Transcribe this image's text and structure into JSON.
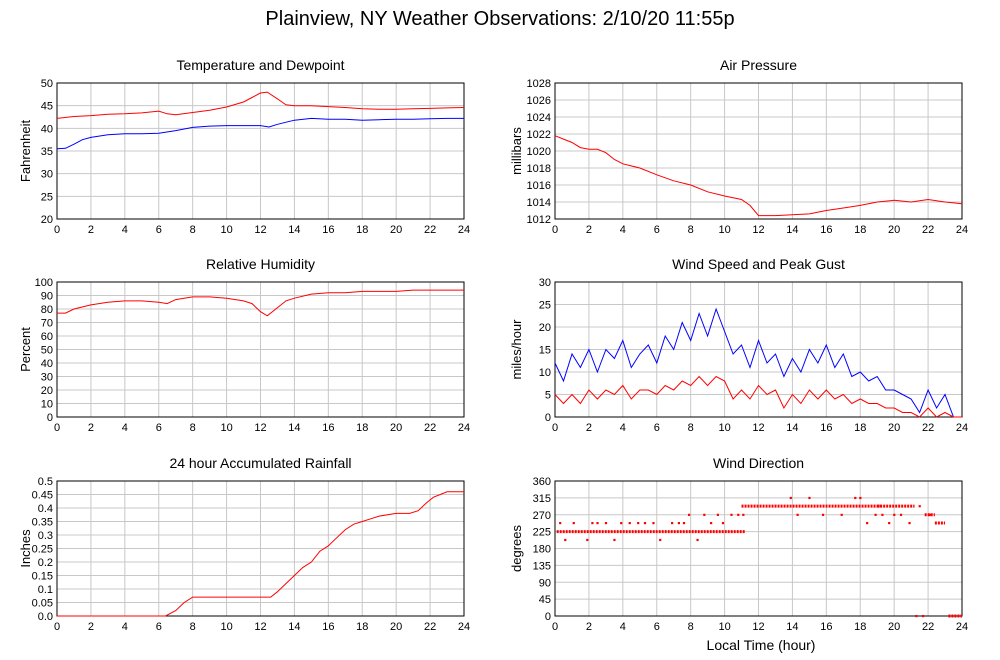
{
  "page": {
    "title": "Plainview, NY Weather Observations: 2/10/20 11:55p",
    "xlabel": "Local Time (hour)"
  },
  "colors": {
    "red": "#ff0000",
    "blue": "#0000ff",
    "grid": "#c8c8c8"
  },
  "chart_data": [
    {
      "type": "line",
      "title": "Temperature and Dewpoint",
      "ylabel": "Fahrenheit",
      "xlim": [
        0,
        24
      ],
      "ylim": [
        20,
        50
      ],
      "yticks": [
        20,
        25,
        30,
        35,
        40,
        45,
        50
      ],
      "xticks": [
        0,
        2,
        4,
        6,
        8,
        10,
        12,
        14,
        16,
        18,
        20,
        22,
        24
      ],
      "grid": true,
      "series": [
        {
          "color": "#ff0000",
          "x": [
            0,
            1,
            2,
            3,
            4,
            5,
            6,
            6.5,
            7,
            8,
            9,
            10,
            11,
            11.5,
            12,
            12.4,
            13,
            13.5,
            14,
            15,
            16,
            17,
            18,
            19,
            20,
            21,
            22,
            23,
            24
          ],
          "y": [
            42.2,
            42.6,
            42.8,
            43.1,
            43.2,
            43.4,
            43.8,
            43.2,
            43.0,
            43.5,
            44.0,
            44.7,
            45.8,
            46.8,
            47.8,
            48.0,
            46.5,
            45.2,
            45.0,
            45.0,
            44.8,
            44.6,
            44.3,
            44.2,
            44.2,
            44.3,
            44.4,
            44.5,
            44.6
          ]
        },
        {
          "color": "#0000ff",
          "x": [
            0,
            0.5,
            1,
            1.5,
            2,
            3,
            4,
            5,
            6,
            7,
            8,
            9,
            10,
            11,
            12,
            12.5,
            13,
            14,
            15,
            16,
            17,
            18,
            19,
            20,
            21,
            22,
            23,
            24
          ],
          "y": [
            35.5,
            35.6,
            36.5,
            37.5,
            38.0,
            38.6,
            38.8,
            38.8,
            38.9,
            39.5,
            40.2,
            40.5,
            40.6,
            40.6,
            40.6,
            40.3,
            40.9,
            41.8,
            42.2,
            42.0,
            42.0,
            41.8,
            41.9,
            42.0,
            42.0,
            42.1,
            42.2,
            42.2
          ]
        }
      ]
    },
    {
      "type": "line",
      "title": "Air Pressure",
      "ylabel": "millibars",
      "xlim": [
        0,
        24
      ],
      "ylim": [
        1012,
        1028
      ],
      "yticks": [
        1012,
        1014,
        1016,
        1018,
        1020,
        1022,
        1024,
        1026,
        1028
      ],
      "xticks": [
        0,
        2,
        4,
        6,
        8,
        10,
        12,
        14,
        16,
        18,
        20,
        22,
        24
      ],
      "grid": true,
      "series": [
        {
          "color": "#ff0000",
          "x": [
            0,
            0.5,
            1,
            1.5,
            2,
            2.5,
            3,
            3.5,
            4,
            5,
            6,
            7,
            8,
            9,
            10,
            11,
            11.5,
            12,
            13,
            14,
            15,
            16,
            17,
            18,
            19,
            20,
            21,
            22,
            23,
            24
          ],
          "y": [
            1021.8,
            1021.4,
            1021.0,
            1020.4,
            1020.2,
            1020.2,
            1019.8,
            1019.0,
            1018.5,
            1018.0,
            1017.2,
            1016.5,
            1016.0,
            1015.2,
            1014.7,
            1014.3,
            1013.6,
            1012.4,
            1012.4,
            1012.5,
            1012.6,
            1013.0,
            1013.3,
            1013.6,
            1014.0,
            1014.2,
            1014.0,
            1014.3,
            1014.0,
            1013.8
          ]
        }
      ]
    },
    {
      "type": "line",
      "title": "Relative Humidity",
      "ylabel": "Percent",
      "xlim": [
        0,
        24
      ],
      "ylim": [
        0,
        100
      ],
      "yticks": [
        0,
        10,
        20,
        30,
        40,
        50,
        60,
        70,
        80,
        90,
        100
      ],
      "xticks": [
        0,
        2,
        4,
        6,
        8,
        10,
        12,
        14,
        16,
        18,
        20,
        22,
        24
      ],
      "grid": true,
      "series": [
        {
          "color": "#ff0000",
          "x": [
            0,
            0.5,
            1,
            2,
            3,
            4,
            5,
            6,
            6.5,
            7,
            8,
            9,
            10,
            11,
            11.5,
            12,
            12.4,
            12.8,
            13.5,
            14,
            15,
            16,
            17,
            18,
            19,
            20,
            21,
            22,
            23,
            24
          ],
          "y": [
            77,
            77,
            80,
            83,
            85,
            86,
            86,
            85,
            84,
            87,
            89,
            89,
            88,
            86,
            84,
            78,
            75,
            79,
            86,
            88,
            91,
            92,
            92,
            93,
            93,
            93,
            94,
            94,
            94,
            94
          ]
        }
      ]
    },
    {
      "type": "line",
      "title": "Wind Speed and Peak Gust",
      "ylabel": "miles/hour",
      "xlim": [
        0,
        24
      ],
      "ylim": [
        0,
        30
      ],
      "yticks": [
        0,
        5,
        10,
        15,
        20,
        25,
        30
      ],
      "xticks": [
        0,
        2,
        4,
        6,
        8,
        10,
        12,
        14,
        16,
        18,
        20,
        22,
        24
      ],
      "grid": true,
      "series": [
        {
          "color": "#0000ff",
          "x": [
            0,
            0.5,
            1,
            1.5,
            2,
            2.5,
            3,
            3.5,
            4,
            4.5,
            5,
            5.5,
            6,
            6.5,
            7,
            7.5,
            8,
            8.5,
            9,
            9.5,
            10,
            10.5,
            11,
            11.5,
            12,
            12.5,
            13,
            13.5,
            14,
            14.5,
            15,
            15.5,
            16,
            16.5,
            17,
            17.5,
            18,
            18.5,
            19,
            19.5,
            20,
            20.5,
            21,
            21.5,
            22,
            22.5,
            23,
            23.5,
            24
          ],
          "y": [
            12,
            8,
            14,
            11,
            15,
            10,
            15,
            13,
            17,
            11,
            14,
            16,
            12,
            18,
            15,
            21,
            17,
            23,
            18,
            24,
            19,
            14,
            16,
            11,
            17,
            12,
            14,
            9,
            13,
            10,
            15,
            12,
            16,
            11,
            14,
            9,
            10,
            8,
            9,
            6,
            6,
            5,
            4,
            1,
            6,
            2,
            5,
            0,
            0
          ]
        },
        {
          "color": "#ff0000",
          "x": [
            0,
            0.5,
            1,
            1.5,
            2,
            2.5,
            3,
            3.5,
            4,
            4.5,
            5,
            5.5,
            6,
            6.5,
            7,
            7.5,
            8,
            8.5,
            9,
            9.5,
            10,
            10.5,
            11,
            11.5,
            12,
            12.5,
            13,
            13.5,
            14,
            14.5,
            15,
            15.5,
            16,
            16.5,
            17,
            17.5,
            18,
            18.5,
            19,
            19.5,
            20,
            20.5,
            21,
            21.5,
            22,
            22.5,
            23,
            23.5,
            24
          ],
          "y": [
            5,
            3,
            5,
            3,
            6,
            4,
            6,
            5,
            7,
            4,
            6,
            6,
            5,
            7,
            6,
            8,
            7,
            9,
            7,
            9,
            8,
            4,
            6,
            4,
            7,
            5,
            6,
            2,
            5,
            3,
            6,
            4,
            6,
            4,
            5,
            3,
            4,
            3,
            3,
            2,
            2,
            1,
            1,
            0,
            2,
            0,
            1,
            0,
            0
          ]
        }
      ]
    },
    {
      "type": "line",
      "title": "24 hour Accumulated Rainfall",
      "ylabel": "Inches",
      "xlim": [
        0,
        24
      ],
      "ylim": [
        0,
        0.5
      ],
      "yticks": [
        0.0,
        0.05,
        0.1,
        0.15,
        0.2,
        0.25,
        0.3,
        0.35,
        0.4,
        0.45,
        0.5
      ],
      "ytick_labels": [
        "0.0",
        "0.05",
        "0.1",
        "0.15",
        "0.2",
        "0.25",
        "0.3",
        "0.35",
        "0.4",
        "0.45",
        "0.5"
      ],
      "xticks": [
        0,
        2,
        4,
        6,
        8,
        10,
        12,
        14,
        16,
        18,
        20,
        22,
        24
      ],
      "grid": true,
      "series": [
        {
          "color": "#ff0000",
          "x": [
            0,
            6.4,
            7.0,
            7.5,
            8.0,
            9,
            10,
            11,
            12,
            12.6,
            13.0,
            13.5,
            14.0,
            14.5,
            15.0,
            15.5,
            16.0,
            16.5,
            17.0,
            17.5,
            18.0,
            18.5,
            19.0,
            20.0,
            20.8,
            21.3,
            21.8,
            22.2,
            22.6,
            23.0,
            24.0
          ],
          "y": [
            0.0,
            0.0,
            0.02,
            0.05,
            0.07,
            0.07,
            0.07,
            0.07,
            0.07,
            0.07,
            0.09,
            0.12,
            0.15,
            0.18,
            0.2,
            0.24,
            0.26,
            0.29,
            0.32,
            0.34,
            0.35,
            0.36,
            0.37,
            0.38,
            0.38,
            0.39,
            0.42,
            0.44,
            0.45,
            0.46,
            0.46
          ]
        }
      ]
    },
    {
      "type": "scatter",
      "title": "Wind Direction",
      "ylabel": "degrees",
      "xlim": [
        0,
        24
      ],
      "ylim": [
        0,
        360
      ],
      "yticks": [
        0,
        45,
        90,
        135,
        180,
        225,
        270,
        315,
        360
      ],
      "xticks": [
        0,
        2,
        4,
        6,
        8,
        10,
        12,
        14,
        16,
        18,
        20,
        22,
        24
      ],
      "grid": true,
      "series": [
        {
          "color": "#ff0000",
          "segments": [
            {
              "x0": 0.1,
              "x1": 11.2,
              "y": 225
            },
            {
              "x0": 11.0,
              "x1": 19.2,
              "y": 293
            },
            {
              "x0": 19.0,
              "x1": 21.2,
              "y": 293
            },
            {
              "x0": 21.8,
              "x1": 22.4,
              "y": 270
            },
            {
              "x0": 22.4,
              "x1": 23.0,
              "y": 248
            },
            {
              "x0": 23.2,
              "x1": 24.0,
              "y": 0
            }
          ],
          "x": [
            0.3,
            0.6,
            1.1,
            1.9,
            2.2,
            2.5,
            3.0,
            3.5,
            3.9,
            4.4,
            4.9,
            5.3,
            5.8,
            6.2,
            6.9,
            7.3,
            7.6,
            7.9,
            8.4,
            8.8,
            9.2,
            9.6,
            9.9,
            10.4,
            10.8,
            11.1,
            13.9,
            14.3,
            15.0,
            15.8,
            16.9,
            17.7,
            18.0,
            18.4,
            18.9,
            19.3,
            19.7,
            20.0,
            20.4,
            20.9,
            21.3,
            21.5,
            21.7,
            22.1
          ],
          "y": [
            248,
            203,
            248,
            203,
            248,
            248,
            248,
            203,
            248,
            248,
            248,
            248,
            248,
            203,
            248,
            248,
            248,
            270,
            203,
            270,
            248,
            270,
            248,
            270,
            270,
            270,
            315,
            270,
            315,
            270,
            270,
            315,
            315,
            248,
            270,
            270,
            248,
            270,
            270,
            248,
            0,
            293,
            0,
            270
          ]
        }
      ]
    }
  ]
}
